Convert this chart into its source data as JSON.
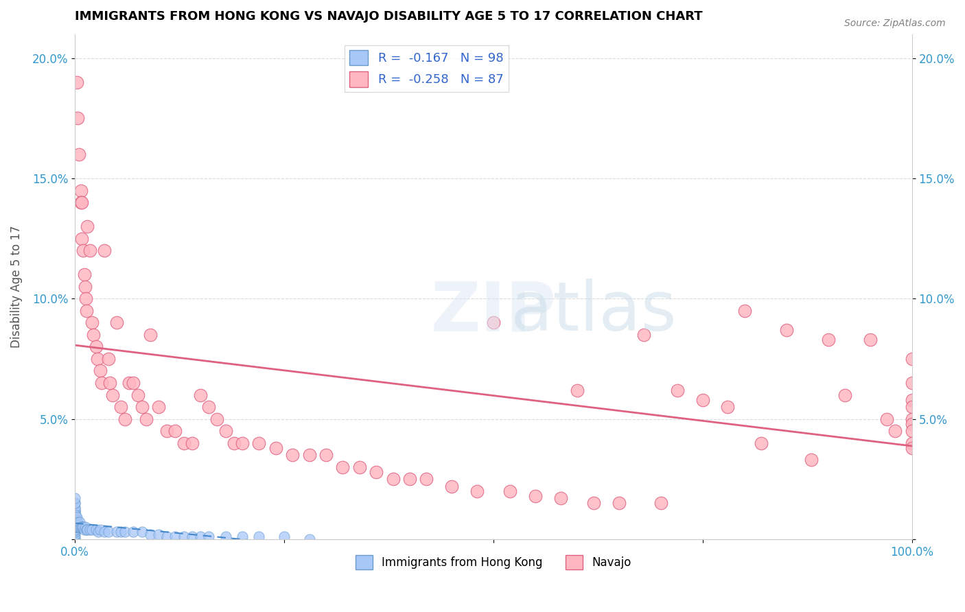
{
  "title": "IMMIGRANTS FROM HONG KONG VS NAVAJO DISABILITY AGE 5 TO 17 CORRELATION CHART",
  "source": "Source: ZipAtlas.com",
  "xlabel": "",
  "ylabel": "Disability Age 5 to 17",
  "xlim": [
    0.0,
    1.0
  ],
  "ylim": [
    0.0,
    0.21
  ],
  "xticks": [
    0.0,
    0.25,
    0.5,
    0.75,
    1.0
  ],
  "xticklabels": [
    "0.0%",
    "",
    "",
    "",
    "100.0%"
  ],
  "yticks": [
    0.0,
    0.05,
    0.1,
    0.15,
    0.2
  ],
  "yticklabels": [
    "",
    "5.0%",
    "10.0%",
    "15.0%",
    "20.0%"
  ],
  "legend_r_hk": "-0.167",
  "legend_n_hk": "98",
  "legend_r_navajo": "-0.258",
  "legend_n_navajo": "87",
  "hk_color": "#a8c8f8",
  "hk_edge_color": "#6699cc",
  "navajo_color": "#ffb6c1",
  "navajo_edge_color": "#e06080",
  "hk_trend_color": "#4488cc",
  "navajo_trend_color": "#e06080",
  "watermark": "ZIPatlas",
  "hk_x": [
    0.0,
    0.0,
    0.0,
    0.0,
    0.0,
    0.0,
    0.0,
    0.0,
    0.0,
    0.0,
    0.0,
    0.0,
    0.0,
    0.0,
    0.0,
    0.0,
    0.0,
    0.0,
    0.0,
    0.0,
    0.0,
    0.0,
    0.0,
    0.0,
    0.0,
    0.0,
    0.0,
    0.0,
    0.0,
    0.0,
    0.0,
    0.0,
    0.0,
    0.0,
    0.0,
    0.0,
    0.0,
    0.0,
    0.0,
    0.0,
    0.0,
    0.0,
    0.001,
    0.001,
    0.001,
    0.001,
    0.001,
    0.001,
    0.001,
    0.001,
    0.001,
    0.002,
    0.002,
    0.002,
    0.002,
    0.002,
    0.003,
    0.003,
    0.003,
    0.004,
    0.004,
    0.005,
    0.005,
    0.006,
    0.006,
    0.007,
    0.008,
    0.009,
    0.01,
    0.011,
    0.012,
    0.014,
    0.015,
    0.018,
    0.02,
    0.025,
    0.028,
    0.03,
    0.035,
    0.04,
    0.05,
    0.055,
    0.06,
    0.07,
    0.08,
    0.09,
    0.1,
    0.11,
    0.12,
    0.13,
    0.14,
    0.15,
    0.16,
    0.18,
    0.2,
    0.22,
    0.25,
    0.28
  ],
  "hk_y": [
    0.0,
    0.0,
    0.001,
    0.002,
    0.003,
    0.003,
    0.004,
    0.004,
    0.004,
    0.005,
    0.005,
    0.005,
    0.005,
    0.006,
    0.006,
    0.006,
    0.006,
    0.006,
    0.007,
    0.007,
    0.007,
    0.007,
    0.007,
    0.008,
    0.008,
    0.008,
    0.008,
    0.009,
    0.009,
    0.009,
    0.01,
    0.01,
    0.01,
    0.011,
    0.011,
    0.012,
    0.012,
    0.013,
    0.013,
    0.015,
    0.015,
    0.017,
    0.005,
    0.006,
    0.006,
    0.007,
    0.007,
    0.008,
    0.008,
    0.009,
    0.01,
    0.005,
    0.006,
    0.007,
    0.008,
    0.009,
    0.005,
    0.006,
    0.007,
    0.005,
    0.006,
    0.005,
    0.006,
    0.005,
    0.007,
    0.005,
    0.005,
    0.005,
    0.005,
    0.004,
    0.005,
    0.004,
    0.004,
    0.004,
    0.004,
    0.004,
    0.003,
    0.004,
    0.003,
    0.003,
    0.003,
    0.003,
    0.003,
    0.003,
    0.003,
    0.002,
    0.002,
    0.001,
    0.001,
    0.001,
    0.001,
    0.001,
    0.001,
    0.001,
    0.001,
    0.001,
    0.001,
    0.0
  ],
  "navajo_x": [
    0.002,
    0.003,
    0.005,
    0.007,
    0.007,
    0.008,
    0.008,
    0.01,
    0.011,
    0.012,
    0.013,
    0.014,
    0.015,
    0.018,
    0.02,
    0.022,
    0.025,
    0.027,
    0.03,
    0.032,
    0.035,
    0.04,
    0.042,
    0.045,
    0.05,
    0.055,
    0.06,
    0.065,
    0.07,
    0.075,
    0.08,
    0.085,
    0.09,
    0.1,
    0.11,
    0.12,
    0.13,
    0.14,
    0.15,
    0.16,
    0.17,
    0.18,
    0.19,
    0.2,
    0.22,
    0.24,
    0.26,
    0.28,
    0.3,
    0.32,
    0.34,
    0.36,
    0.38,
    0.4,
    0.42,
    0.45,
    0.48,
    0.5,
    0.52,
    0.55,
    0.58,
    0.6,
    0.62,
    0.65,
    0.68,
    0.7,
    0.72,
    0.75,
    0.78,
    0.8,
    0.82,
    0.85,
    0.88,
    0.9,
    0.92,
    0.95,
    0.97,
    0.98,
    1.0,
    1.0,
    1.0,
    1.0,
    1.0,
    1.0,
    1.0,
    1.0,
    1.0
  ],
  "navajo_y": [
    0.19,
    0.175,
    0.16,
    0.145,
    0.14,
    0.14,
    0.125,
    0.12,
    0.11,
    0.105,
    0.1,
    0.095,
    0.13,
    0.12,
    0.09,
    0.085,
    0.08,
    0.075,
    0.07,
    0.065,
    0.12,
    0.075,
    0.065,
    0.06,
    0.09,
    0.055,
    0.05,
    0.065,
    0.065,
    0.06,
    0.055,
    0.05,
    0.085,
    0.055,
    0.045,
    0.045,
    0.04,
    0.04,
    0.06,
    0.055,
    0.05,
    0.045,
    0.04,
    0.04,
    0.04,
    0.038,
    0.035,
    0.035,
    0.035,
    0.03,
    0.03,
    0.028,
    0.025,
    0.025,
    0.025,
    0.022,
    0.02,
    0.09,
    0.02,
    0.018,
    0.017,
    0.062,
    0.015,
    0.015,
    0.085,
    0.015,
    0.062,
    0.058,
    0.055,
    0.095,
    0.04,
    0.087,
    0.033,
    0.083,
    0.06,
    0.083,
    0.05,
    0.045,
    0.075,
    0.065,
    0.058,
    0.055,
    0.05,
    0.048,
    0.045,
    0.04,
    0.038
  ]
}
